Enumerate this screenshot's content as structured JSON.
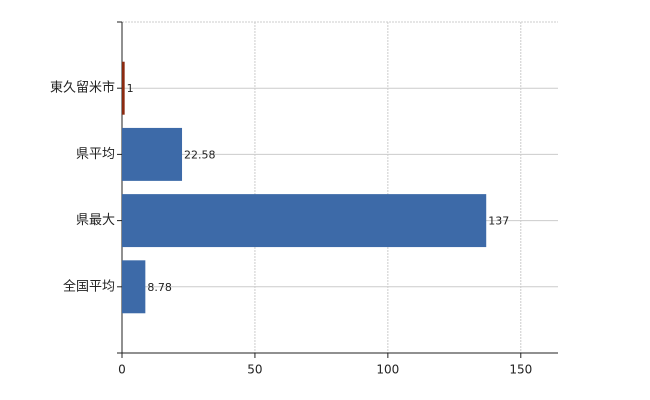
{
  "chart_data": {
    "type": "bar",
    "orientation": "horizontal",
    "categories": [
      "東久留米市",
      "県平均",
      "県最大",
      "全国平均"
    ],
    "values": [
      1,
      22.58,
      137,
      8.78
    ],
    "colors": [
      "#8b2a10",
      "#3d6aa8",
      "#3d6aa8",
      "#3d6aa8"
    ],
    "xlim": [
      0,
      164
    ],
    "xticks": [
      0,
      50,
      100,
      150
    ],
    "grid": true
  }
}
